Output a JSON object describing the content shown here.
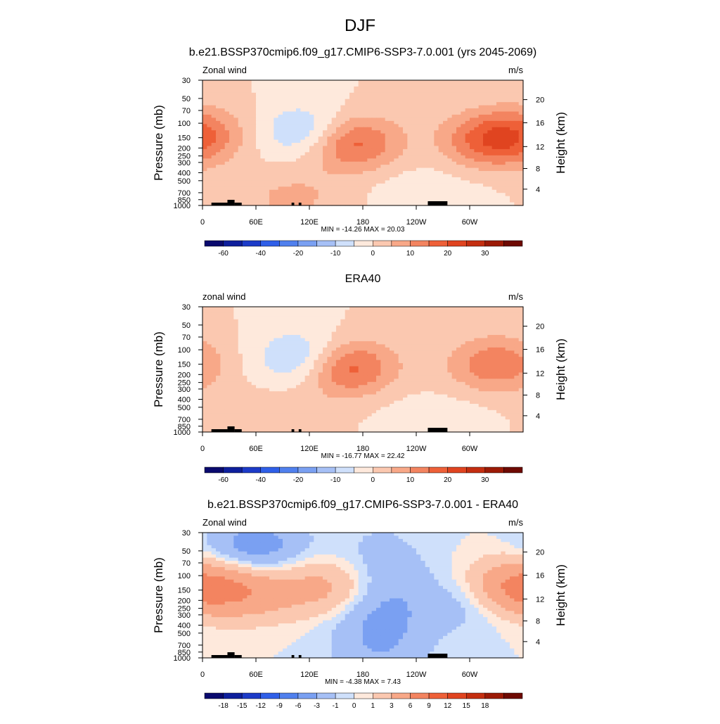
{
  "figure_title": "DJF",
  "chart_data": [
    {
      "type": "heatmap",
      "title": "b.e21.BSSP370cmip6.f09_g17.CMIP6-SSP3-7.0.001 (yrs 2045-2069)",
      "left_label": "Zonal wind",
      "units": "m/s",
      "ylabel": "Pressure (mb)",
      "y2label": "Height (km)",
      "xticks": [
        "0",
        "60E",
        "120E",
        "180",
        "120W",
        "60W"
      ],
      "yticks": [
        "30",
        "50",
        "70",
        "100",
        "150",
        "200",
        "250",
        "300",
        "400",
        "500",
        "700",
        "850",
        "1000"
      ],
      "y2ticks": [
        "20",
        "16",
        "12",
        "8",
        "4"
      ],
      "stats": "MIN = -14.26  MAX =  20.03",
      "min": -14.26,
      "max": 20.03,
      "colorbar_labels": [
        "-60",
        "-40",
        "-20",
        "-10",
        "0",
        "10",
        "20",
        "30"
      ],
      "levels": [
        -70,
        -60,
        -50,
        -40,
        -30,
        -20,
        -15,
        -10,
        -5,
        0,
        5,
        10,
        15,
        20,
        25,
        30,
        35
      ],
      "features": [
        {
          "lon": 165,
          "p": 170,
          "value": 20,
          "kind": "jet core"
        },
        {
          "lon": 325,
          "p": 160,
          "value": 18,
          "kind": "jet core"
        },
        {
          "lon": 120,
          "p": 130,
          "value": -14,
          "kind": "easterly minimum"
        },
        {
          "lon": 5,
          "p": 130,
          "value": 8,
          "kind": "westerly"
        },
        {
          "lon": 100,
          "p": 800,
          "value": 6,
          "kind": "surface westerly"
        },
        {
          "lon": 250,
          "p": 750,
          "value": -4,
          "kind": "surface easterly"
        }
      ]
    },
    {
      "type": "heatmap",
      "title": "ERA40",
      "left_label": "zonal wind",
      "units": "m/s",
      "ylabel": "Pressure (mb)",
      "y2label": "Height (km)",
      "xticks": [
        "0",
        "60E",
        "120E",
        "180",
        "120W",
        "60W"
      ],
      "yticks": [
        "30",
        "50",
        "70",
        "100",
        "150",
        "200",
        "250",
        "300",
        "400",
        "500",
        "700",
        "850",
        "1000"
      ],
      "y2ticks": [
        "20",
        "16",
        "12",
        "8",
        "4"
      ],
      "stats": "MIN = -16.77  MAX =  22.42",
      "min": -16.77,
      "max": 22.42,
      "colorbar_labels": [
        "-60",
        "-40",
        "-20",
        "-10",
        "0",
        "10",
        "20",
        "30"
      ],
      "levels": [
        -70,
        -60,
        -50,
        -40,
        -30,
        -20,
        -15,
        -10,
        -5,
        0,
        5,
        10,
        15,
        20,
        25,
        30,
        35
      ],
      "features": [
        {
          "lon": 158,
          "p": 160,
          "value": 22,
          "kind": "jet core"
        },
        {
          "lon": 330,
          "p": 150,
          "value": 14,
          "kind": "jet core"
        },
        {
          "lon": 118,
          "p": 130,
          "value": -16,
          "kind": "easterly minimum"
        },
        {
          "lon": 80,
          "p": 750,
          "value": 5,
          "kind": "surface westerly"
        },
        {
          "lon": 260,
          "p": 800,
          "value": -4,
          "kind": "surface easterly"
        }
      ]
    },
    {
      "type": "heatmap",
      "title": "b.e21.BSSP370cmip6.f09_g17.CMIP6-SSP3-7.0.001 - ERA40",
      "left_label": "Zonal wind",
      "units": "m/s",
      "ylabel": "Pressure (mb)",
      "y2label": "Height (km)",
      "xticks": [
        "0",
        "60E",
        "120E",
        "180",
        "120W",
        "60W"
      ],
      "yticks": [
        "30",
        "50",
        "70",
        "100",
        "150",
        "200",
        "250",
        "300",
        "400",
        "500",
        "700",
        "850",
        "1000"
      ],
      "y2ticks": [
        "20",
        "16",
        "12",
        "8",
        "4"
      ],
      "stats": "MIN =  -4.38  MAX =   7.43",
      "min": -4.38,
      "max": 7.43,
      "colorbar_labels": [
        "-18",
        "-15",
        "-12",
        "-9",
        "-6",
        "-3",
        "-1",
        "0",
        "1",
        "3",
        "6",
        "9",
        "12",
        "15",
        "18"
      ],
      "levels": [
        -21,
        -18,
        -15,
        -12,
        -9,
        -6,
        -3,
        -1,
        0,
        1,
        3,
        6,
        9,
        12,
        15,
        18,
        21
      ],
      "features": [
        {
          "lon": 60,
          "p": 45,
          "value": -4.4,
          "kind": "upper negative"
        },
        {
          "lon": 200,
          "p": 300,
          "value": -4.0,
          "kind": "negative column"
        },
        {
          "lon": 355,
          "p": 140,
          "value": 7.4,
          "kind": "positive maximum"
        },
        {
          "lon": 60,
          "p": 160,
          "value": 4,
          "kind": "positive"
        },
        {
          "lon": 145,
          "p": 140,
          "value": 4,
          "kind": "positive"
        },
        {
          "lon": 300,
          "p": 220,
          "value": -2,
          "kind": "negative"
        }
      ]
    }
  ],
  "palette": [
    "#0a0a6e",
    "#0e1f9c",
    "#1c3bc8",
    "#2f5fe8",
    "#5080ee",
    "#7aa0f2",
    "#a6c0f6",
    "#cfe0fb",
    "#fee9dc",
    "#fbc8b0",
    "#f8a888",
    "#f38460",
    "#ee6038",
    "#e04420",
    "#c42e10",
    "#9c1a06",
    "#6e0a02"
  ]
}
